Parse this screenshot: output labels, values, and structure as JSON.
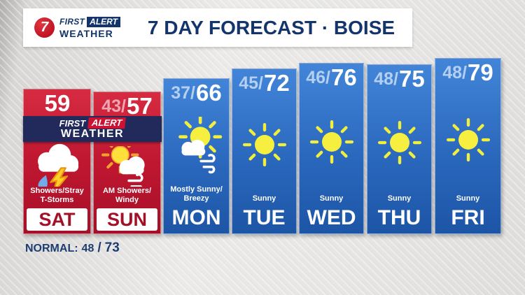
{
  "header": {
    "channel": "7",
    "brand": {
      "first": "FIRST",
      "alert": "ALERT",
      "weather": "WEATHER"
    },
    "title": "7 DAY FORECAST · BOISE"
  },
  "alert_banner": {
    "first": "FIRST",
    "alert": "ALERT",
    "weather": "WEATHER"
  },
  "normal_line": {
    "label": "NORMAL:",
    "low": "48",
    "separator": "/",
    "high": "73"
  },
  "days": [
    {
      "name": "SAT",
      "low": "",
      "high": "59",
      "condition_lines": [
        "Showers/Stray",
        "T-Storms"
      ],
      "icon": "showers-tstorms-icon",
      "alert": true
    },
    {
      "name": "SUN",
      "low": "43",
      "high": "57",
      "condition_lines": [
        "AM Showers/",
        "Windy"
      ],
      "icon": "am-showers-windy-icon",
      "alert": true
    },
    {
      "name": "MON",
      "low": "37",
      "high": "66",
      "condition_lines": [
        "Mostly Sunny/",
        "Breezy"
      ],
      "icon": "mostly-sunny-breezy-icon",
      "alert": false
    },
    {
      "name": "TUE",
      "low": "45",
      "high": "72",
      "condition_lines": [
        "Sunny"
      ],
      "icon": "sunny-icon",
      "alert": false
    },
    {
      "name": "WED",
      "low": "46",
      "high": "76",
      "condition_lines": [
        "Sunny"
      ],
      "icon": "sunny-icon",
      "alert": false
    },
    {
      "name": "THU",
      "low": "48",
      "high": "75",
      "condition_lines": [
        "Sunny"
      ],
      "icon": "sunny-icon",
      "alert": false
    },
    {
      "name": "FRI",
      "low": "48",
      "high": "79",
      "condition_lines": [
        "Sunny"
      ],
      "icon": "sunny-icon",
      "alert": false
    }
  ],
  "colors": {
    "navy": "#14356b",
    "banner_navy": "#222a5c",
    "alert_red": "#c01731",
    "alert_badge_red": "#cb1232",
    "column_blue": "#2a68bd",
    "low_temp_on_red": "#eda6b2",
    "low_temp_on_blue": "#b4cfef",
    "day_label_red": "#a31128",
    "sun_yellow": "#f2ee3e",
    "sun_orange_rays": "#f0a22c",
    "raindrop_blue": "#6fabe8",
    "lightning_yellow": "#ffce27"
  },
  "chart_data": {
    "type": "bar",
    "title": "7 DAY FORECAST · BOISE",
    "categories": [
      "SAT",
      "SUN",
      "MON",
      "TUE",
      "WED",
      "THU",
      "FRI"
    ],
    "series": [
      {
        "name": "Low",
        "values": [
          null,
          43,
          37,
          45,
          46,
          48,
          48
        ]
      },
      {
        "name": "High",
        "values": [
          59,
          57,
          66,
          72,
          76,
          75,
          79
        ]
      }
    ],
    "annotations": [
      "Showers/Stray T-Storms",
      "AM Showers/Windy",
      "Mostly Sunny/Breezy",
      "Sunny",
      "Sunny",
      "Sunny",
      "Sunny"
    ],
    "alert_days": [
      "SAT",
      "SUN"
    ],
    "normal_low": 48,
    "normal_high": 73,
    "legend_position": "none",
    "grid": false
  }
}
